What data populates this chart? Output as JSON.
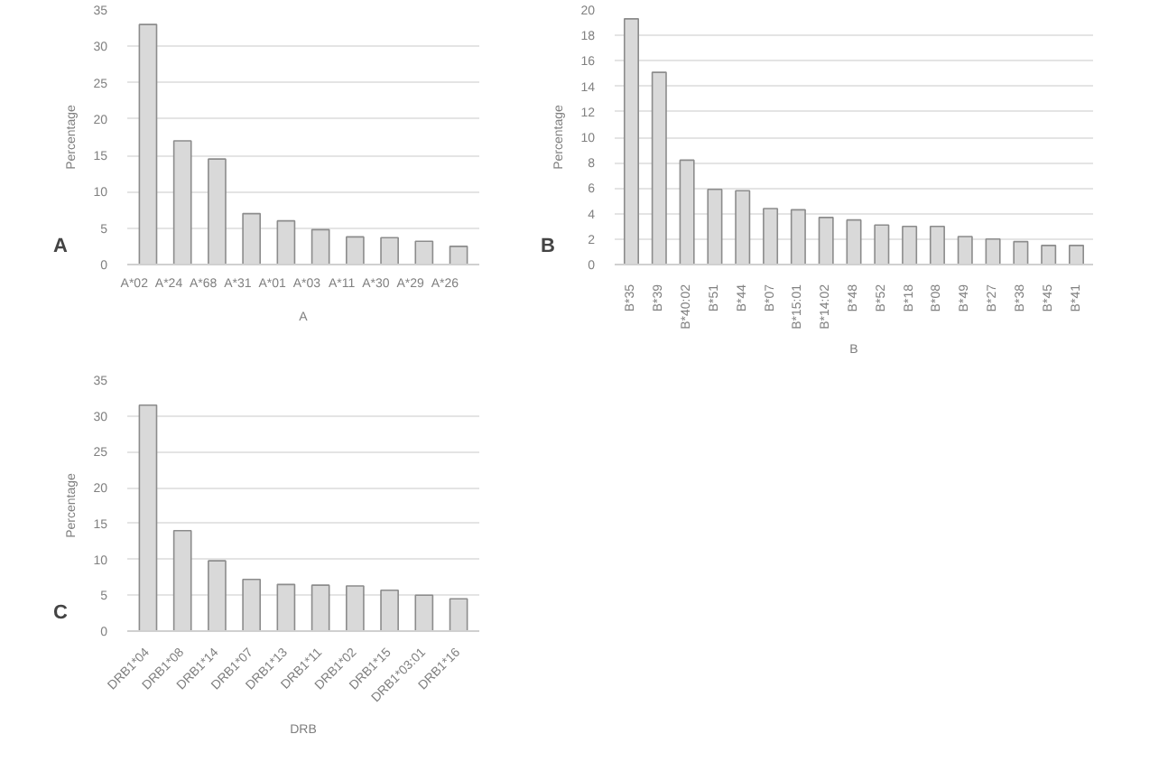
{
  "chart_data": [
    {
      "type": "bar",
      "xlabel": "A",
      "ylabel": "Percentage",
      "annotations": [
        "A"
      ],
      "categories": [
        "A*02",
        "A*24",
        "A*68",
        "A*31",
        "A*01",
        "A*03",
        "A*11",
        "A*30",
        "A*29",
        "A*26"
      ],
      "values": [
        33,
        17,
        14.5,
        7,
        6,
        4.8,
        3.8,
        3.7,
        3.2,
        2.5
      ],
      "color": "#d9d9d9",
      "ylim": [
        0,
        35
      ],
      "yticks": [
        0,
        5,
        10,
        15,
        20,
        25,
        30,
        35
      ],
      "grid": "y"
    },
    {
      "type": "bar",
      "xlabel": "B",
      "ylabel": "Percentage",
      "annotations": [
        "B"
      ],
      "categories": [
        "B*35",
        "B*39",
        "B*40:02",
        "B*51",
        "B*44",
        "B*07",
        "B*15:01",
        "B*14:02",
        "B*48",
        "B*52",
        "B*18",
        "B*08",
        "B*49",
        "B*27",
        "B*38",
        "B*45",
        "B*41"
      ],
      "values": [
        19.3,
        15.1,
        8.2,
        5.9,
        5.8,
        4.4,
        4.3,
        3.7,
        3.5,
        3.1,
        3.0,
        3.0,
        2.2,
        2.0,
        1.8,
        1.5,
        1.5
      ],
      "color": "#d9d9d9",
      "ylim": [
        0,
        20
      ],
      "yticks": [
        0,
        2,
        4,
        6,
        8,
        10,
        12,
        14,
        16,
        18,
        20
      ],
      "grid": "y"
    },
    {
      "type": "bar",
      "xlabel": "DRB",
      "ylabel": "Percentage",
      "annotations": [
        "C"
      ],
      "categories": [
        "DRB1*04",
        "DRB1*08",
        "DRB1*14",
        "DRB1*07",
        "DRB1*13",
        "DRB1*11",
        "DRB1*02",
        "DRB1*15",
        "DRB1*03:01",
        "DRB1*16"
      ],
      "values": [
        31.5,
        14,
        9.8,
        7.2,
        6.5,
        6.4,
        6.3,
        5.7,
        5,
        4.5
      ],
      "color": "#d9d9d9",
      "ylim": [
        0,
        35
      ],
      "yticks": [
        0,
        5,
        10,
        15,
        20,
        25,
        30,
        35
      ],
      "grid": "y"
    }
  ]
}
